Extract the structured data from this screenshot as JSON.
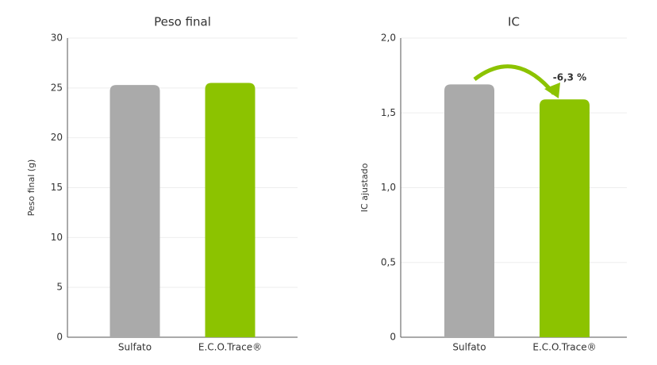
{
  "chart_data": [
    {
      "type": "bar",
      "title": "Peso final",
      "y_label": "Peso final (g)",
      "categories": [
        "Sulfato",
        "E.C.O.Trace®"
      ],
      "values": [
        25.3,
        25.5
      ],
      "colors": [
        "#aaaaaa",
        "#8cc300"
      ],
      "ylim": [
        0,
        30
      ],
      "yticks": [
        0,
        5,
        10,
        15,
        20,
        25,
        30
      ],
      "grid": true
    },
    {
      "type": "bar",
      "title": "IC",
      "y_label": "IC ajustado",
      "annotation": "-6,3 %",
      "categories": [
        "Sulfato",
        "E.C.O.Trace®"
      ],
      "values": [
        1.69,
        1.59
      ],
      "colors": [
        "#aaaaaa",
        "#8cc300"
      ],
      "ylim": [
        0,
        2.0
      ],
      "yticks": [
        0,
        {
          "value": 0.5,
          "label": "0,5"
        },
        {
          "value": 1.0,
          "label": "1,0"
        },
        {
          "value": 1.5,
          "label": "1,5"
        },
        {
          "value": 2.0,
          "label": "2,0"
        }
      ],
      "grid": true
    }
  ]
}
